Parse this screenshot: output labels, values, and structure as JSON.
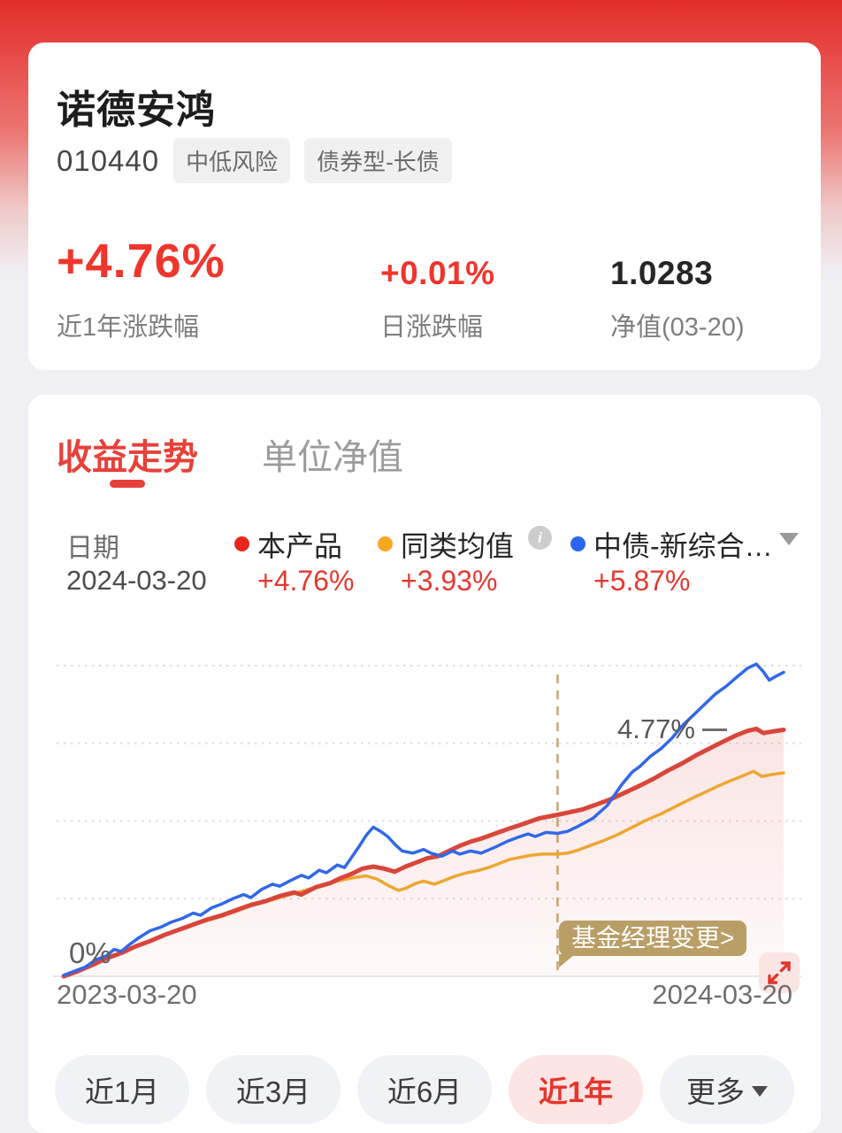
{
  "header": {
    "title": "诺德安鸿",
    "code": "010440",
    "tags": [
      "中低风险",
      "债券型-长债"
    ]
  },
  "stats": [
    {
      "value": "+4.76%",
      "label": "近1年涨跌幅"
    },
    {
      "value": "+0.01%",
      "label": "日涨跌幅"
    },
    {
      "value": "1.0283",
      "label": "净值(03-20)"
    }
  ],
  "tabs": [
    {
      "label": "收益走势",
      "active": true
    },
    {
      "label": "单位净值",
      "active": false
    }
  ],
  "legend": {
    "date_label": "日期",
    "date_value": "2024-03-20",
    "series": [
      {
        "name": "本产品",
        "value": "+4.76%",
        "dot_color": "#e8281e"
      },
      {
        "name": "同类均值",
        "value": "+3.93%",
        "dot_color": "#f7a821",
        "info_icon": "info-circle"
      },
      {
        "name": "中债-新综合…",
        "value": "+5.87%",
        "dot_color": "#2b66f0",
        "dropdown_icon": "caret-down"
      }
    ]
  },
  "chart": {
    "zero_label": "0%",
    "annotation_label": "4.77%",
    "event_badge_label": "基金经理变更>",
    "x_axis_start": "2023-03-20",
    "x_axis_end": "2024-03-20",
    "expand_icon": "expand-arrows",
    "accent_tan": "#b99e66",
    "background_fill": "#fdf1f0"
  },
  "chart_data": {
    "type": "line",
    "title": "收益走势 近1年",
    "x_range": [
      "2023-03-20",
      "2024-03-20"
    ],
    "y_unit": "percent",
    "ylim": [
      0,
      6.3
    ],
    "gridlines_pct": [
      1.5,
      3,
      4.5,
      6
    ],
    "grid": "dotted-horizontal",
    "event_x": 0.686,
    "event_label": "基金经理变更",
    "series": [
      {
        "name": "同类均值",
        "color": "#eea630",
        "width": 3.5,
        "z": 1,
        "final_pct": 3.93,
        "points": [
          [
            0,
            0
          ],
          [
            0.02,
            0.1
          ],
          [
            0.04,
            0.22
          ],
          [
            0.06,
            0.35
          ],
          [
            0.08,
            0.45
          ],
          [
            0.1,
            0.58
          ],
          [
            0.12,
            0.68
          ],
          [
            0.14,
            0.8
          ],
          [
            0.16,
            0.9
          ],
          [
            0.18,
            1.0
          ],
          [
            0.2,
            1.08
          ],
          [
            0.22,
            1.16
          ],
          [
            0.24,
            1.26
          ],
          [
            0.26,
            1.36
          ],
          [
            0.28,
            1.44
          ],
          [
            0.3,
            1.52
          ],
          [
            0.32,
            1.6
          ],
          [
            0.34,
            1.68
          ],
          [
            0.36,
            1.76
          ],
          [
            0.38,
            1.84
          ],
          [
            0.4,
            1.9
          ],
          [
            0.42,
            1.94
          ],
          [
            0.435,
            1.88
          ],
          [
            0.45,
            1.76
          ],
          [
            0.465,
            1.66
          ],
          [
            0.475,
            1.7
          ],
          [
            0.49,
            1.8
          ],
          [
            0.5,
            1.84
          ],
          [
            0.515,
            1.78
          ],
          [
            0.53,
            1.86
          ],
          [
            0.545,
            1.94
          ],
          [
            0.56,
            2.0
          ],
          [
            0.575,
            2.04
          ],
          [
            0.59,
            2.1
          ],
          [
            0.605,
            2.18
          ],
          [
            0.62,
            2.26
          ],
          [
            0.635,
            2.3
          ],
          [
            0.65,
            2.34
          ],
          [
            0.665,
            2.36
          ],
          [
            0.686,
            2.36
          ],
          [
            0.7,
            2.38
          ],
          [
            0.715,
            2.44
          ],
          [
            0.73,
            2.52
          ],
          [
            0.75,
            2.62
          ],
          [
            0.77,
            2.74
          ],
          [
            0.79,
            2.88
          ],
          [
            0.81,
            3.02
          ],
          [
            0.83,
            3.14
          ],
          [
            0.85,
            3.28
          ],
          [
            0.87,
            3.42
          ],
          [
            0.89,
            3.55
          ],
          [
            0.91,
            3.68
          ],
          [
            0.93,
            3.8
          ],
          [
            0.945,
            3.88
          ],
          [
            0.958,
            3.96
          ],
          [
            0.97,
            3.86
          ],
          [
            0.985,
            3.9
          ],
          [
            1,
            3.93
          ]
        ]
      },
      {
        "name": "本产品",
        "color": "#d8463b",
        "width": 5,
        "z": 2,
        "fill": true,
        "final_pct": 4.76,
        "points": [
          [
            0,
            0
          ],
          [
            0.02,
            0.1
          ],
          [
            0.04,
            0.22
          ],
          [
            0.06,
            0.35
          ],
          [
            0.08,
            0.45
          ],
          [
            0.1,
            0.58
          ],
          [
            0.12,
            0.68
          ],
          [
            0.14,
            0.8
          ],
          [
            0.16,
            0.9
          ],
          [
            0.18,
            1.0
          ],
          [
            0.2,
            1.1
          ],
          [
            0.22,
            1.18
          ],
          [
            0.24,
            1.28
          ],
          [
            0.26,
            1.38
          ],
          [
            0.28,
            1.45
          ],
          [
            0.3,
            1.55
          ],
          [
            0.32,
            1.62
          ],
          [
            0.33,
            1.58
          ],
          [
            0.35,
            1.72
          ],
          [
            0.37,
            1.8
          ],
          [
            0.385,
            1.9
          ],
          [
            0.4,
            1.98
          ],
          [
            0.415,
            2.08
          ],
          [
            0.43,
            2.12
          ],
          [
            0.445,
            2.08
          ],
          [
            0.46,
            2.02
          ],
          [
            0.475,
            2.12
          ],
          [
            0.49,
            2.2
          ],
          [
            0.505,
            2.28
          ],
          [
            0.52,
            2.32
          ],
          [
            0.535,
            2.42
          ],
          [
            0.55,
            2.52
          ],
          [
            0.565,
            2.6
          ],
          [
            0.58,
            2.66
          ],
          [
            0.6,
            2.76
          ],
          [
            0.62,
            2.86
          ],
          [
            0.64,
            2.95
          ],
          [
            0.66,
            3.05
          ],
          [
            0.686,
            3.12
          ],
          [
            0.7,
            3.16
          ],
          [
            0.72,
            3.22
          ],
          [
            0.74,
            3.32
          ],
          [
            0.76,
            3.42
          ],
          [
            0.78,
            3.55
          ],
          [
            0.8,
            3.68
          ],
          [
            0.82,
            3.82
          ],
          [
            0.84,
            3.98
          ],
          [
            0.86,
            4.12
          ],
          [
            0.88,
            4.28
          ],
          [
            0.9,
            4.42
          ],
          [
            0.92,
            4.56
          ],
          [
            0.935,
            4.66
          ],
          [
            0.95,
            4.74
          ],
          [
            0.962,
            4.78
          ],
          [
            0.972,
            4.7
          ],
          [
            0.985,
            4.73
          ],
          [
            1,
            4.76
          ]
        ]
      },
      {
        "name": "中债-新综合",
        "color": "#3168e7",
        "width": 3.5,
        "z": 3,
        "final_pct": 5.87,
        "points": [
          [
            0,
            0.02
          ],
          [
            0.015,
            0.1
          ],
          [
            0.03,
            0.18
          ],
          [
            0.045,
            0.32
          ],
          [
            0.06,
            0.4
          ],
          [
            0.07,
            0.52
          ],
          [
            0.08,
            0.48
          ],
          [
            0.09,
            0.6
          ],
          [
            0.105,
            0.75
          ],
          [
            0.12,
            0.88
          ],
          [
            0.135,
            0.95
          ],
          [
            0.15,
            1.05
          ],
          [
            0.165,
            1.12
          ],
          [
            0.18,
            1.22
          ],
          [
            0.19,
            1.18
          ],
          [
            0.205,
            1.32
          ],
          [
            0.22,
            1.4
          ],
          [
            0.235,
            1.5
          ],
          [
            0.25,
            1.58
          ],
          [
            0.26,
            1.52
          ],
          [
            0.275,
            1.68
          ],
          [
            0.29,
            1.78
          ],
          [
            0.3,
            1.74
          ],
          [
            0.315,
            1.85
          ],
          [
            0.33,
            1.95
          ],
          [
            0.34,
            1.9
          ],
          [
            0.355,
            2.05
          ],
          [
            0.365,
            2.0
          ],
          [
            0.38,
            2.15
          ],
          [
            0.39,
            2.1
          ],
          [
            0.4,
            2.3
          ],
          [
            0.41,
            2.5
          ],
          [
            0.42,
            2.72
          ],
          [
            0.43,
            2.88
          ],
          [
            0.44,
            2.8
          ],
          [
            0.45,
            2.7
          ],
          [
            0.46,
            2.55
          ],
          [
            0.47,
            2.42
          ],
          [
            0.485,
            2.38
          ],
          [
            0.5,
            2.45
          ],
          [
            0.51,
            2.38
          ],
          [
            0.525,
            2.32
          ],
          [
            0.54,
            2.42
          ],
          [
            0.55,
            2.36
          ],
          [
            0.565,
            2.42
          ],
          [
            0.58,
            2.38
          ],
          [
            0.6,
            2.5
          ],
          [
            0.615,
            2.6
          ],
          [
            0.63,
            2.68
          ],
          [
            0.645,
            2.75
          ],
          [
            0.655,
            2.7
          ],
          [
            0.67,
            2.78
          ],
          [
            0.686,
            2.76
          ],
          [
            0.7,
            2.8
          ],
          [
            0.715,
            2.9
          ],
          [
            0.735,
            3.05
          ],
          [
            0.755,
            3.3
          ],
          [
            0.775,
            3.7
          ],
          [
            0.79,
            3.95
          ],
          [
            0.8,
            4.05
          ],
          [
            0.815,
            4.25
          ],
          [
            0.83,
            4.4
          ],
          [
            0.845,
            4.6
          ],
          [
            0.86,
            4.85
          ],
          [
            0.875,
            5.05
          ],
          [
            0.89,
            5.25
          ],
          [
            0.905,
            5.45
          ],
          [
            0.92,
            5.6
          ],
          [
            0.935,
            5.78
          ],
          [
            0.95,
            5.95
          ],
          [
            0.962,
            6.03
          ],
          [
            0.972,
            5.88
          ],
          [
            0.98,
            5.72
          ],
          [
            0.99,
            5.8
          ],
          [
            1,
            5.87
          ]
        ]
      }
    ]
  },
  "periods": [
    {
      "label": "近1月",
      "active": false
    },
    {
      "label": "近3月",
      "active": false
    },
    {
      "label": "近6月",
      "active": false
    },
    {
      "label": "近1年",
      "active": true
    },
    {
      "label": "更多",
      "active": false,
      "dropdown_icon": "caret-down"
    }
  ]
}
